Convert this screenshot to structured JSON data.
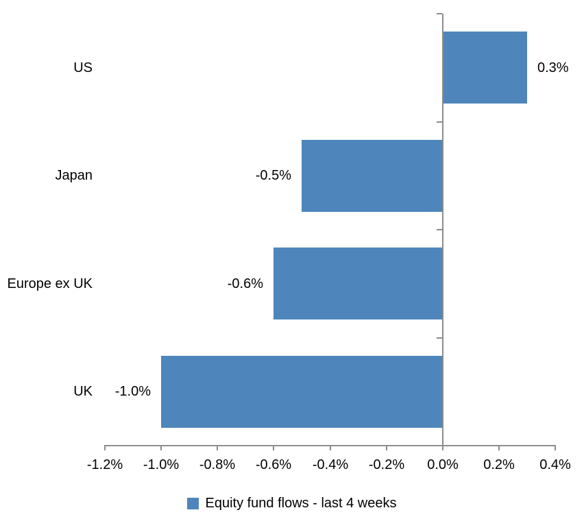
{
  "chart_data": {
    "type": "bar",
    "orientation": "horizontal",
    "title": "",
    "categories": [
      "US",
      "Japan",
      "Europe ex UK",
      "UK"
    ],
    "series": [
      {
        "name": "Equity fund flows - last 4 weeks",
        "values": [
          0.3,
          -0.5,
          -0.6,
          -1.0
        ],
        "data_labels": [
          "0.3%",
          "-0.5%",
          "-0.6%",
          "-1.0%"
        ]
      }
    ],
    "xlabel": "",
    "ylabel": "",
    "x_axis": {
      "min": -1.2,
      "max": 0.4,
      "step": 0.2,
      "tick_labels": [
        "-1.2%",
        "-1.0%",
        "-0.8%",
        "-0.6%",
        "-0.4%",
        "-0.2%",
        "0.0%",
        "0.2%",
        "0.4%"
      ]
    },
    "grid": false,
    "legend": {
      "position": "bottom",
      "label": "Equity fund flows - last 4 weeks"
    },
    "colors": {
      "bar": "#4E86BC",
      "axis": "#8C8C8C",
      "text": "#000000",
      "background": "#FFFFFF"
    }
  }
}
